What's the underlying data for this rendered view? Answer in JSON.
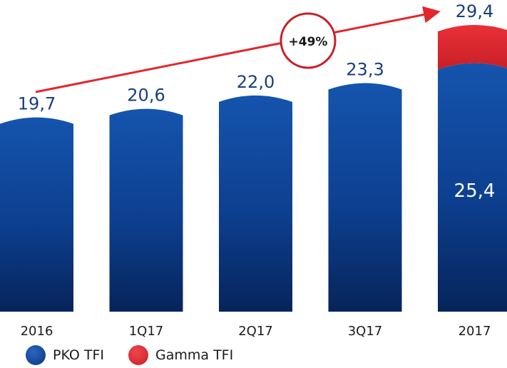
{
  "chart_data": {
    "type": "bar",
    "stacked": true,
    "categories": [
      "2016",
      "1Q17",
      "2Q17",
      "3Q17",
      "2017"
    ],
    "series": [
      {
        "name": "PKO TFI",
        "values": [
          19.7,
          20.6,
          22.0,
          23.3,
          25.4
        ]
      },
      {
        "name": "Gamma TFI",
        "values": [
          0,
          0,
          0,
          0,
          4.0
        ]
      }
    ],
    "total_labels": [
      "19,7",
      "20,6",
      "22,0",
      "23,3",
      "29,4"
    ],
    "segment_labels": [
      {
        "category": "2017",
        "series": "PKO TFI",
        "text": "25,4"
      }
    ],
    "growth_annotation": "+49%",
    "title": "",
    "xlabel": "",
    "ylabel": "",
    "ylim": [
      0,
      29.4
    ],
    "grid": false,
    "legend_position": "bottom-left"
  },
  "colors": {
    "pko_tfi": "#0d3f8f",
    "gamma_tfi": "#e3262d",
    "value_label": "#17407e",
    "segment_label": "#ffffff",
    "arrow": "#e3262d"
  }
}
